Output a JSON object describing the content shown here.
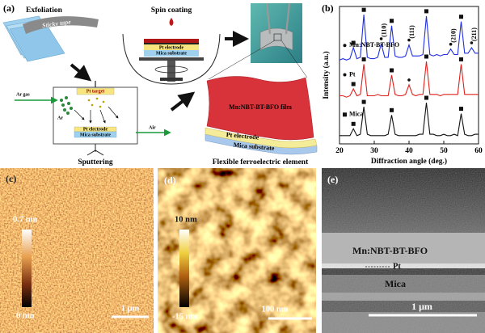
{
  "panel_labels": [
    "(a)",
    "(b)",
    "(c)",
    "(d)",
    "(e)"
  ],
  "schematic": {
    "exfoliation": "Exfoliation",
    "sticky_tape": "Sticky tape",
    "spin_coating": "Spin coating",
    "spin_layers": [
      "Pt electrode",
      "Mica substrate"
    ],
    "sputtering": "Sputtering",
    "pt_target": "Pt target",
    "ar_gas": "Ar gas",
    "ar": "Ar",
    "air": "Air",
    "chamber_layers": [
      "Pt electrode",
      "Mica substrate"
    ],
    "film": "Mn:NBT-BT-BFO film",
    "element_layers": [
      "Pt electrode",
      "Mica substrate"
    ],
    "element": "Flexible ferroelectric element"
  },
  "chart_data": {
    "type": "line",
    "x_label": "Diffraction angle (deg.)",
    "y_label": "Intensity (a.u.)",
    "x": [
      20,
      21,
      22,
      23,
      24,
      25,
      26,
      27,
      28,
      29,
      30,
      31,
      32,
      33,
      34,
      35,
      36,
      37,
      38,
      39,
      40,
      41,
      42,
      43,
      44,
      45,
      46,
      47,
      48,
      49,
      50,
      51,
      52,
      53,
      54,
      55,
      56,
      57,
      58,
      59,
      60
    ],
    "series": [
      {
        "name": "Mn:NBT-BT-BFO",
        "color": "#1f2fe0",
        "marker": "dot",
        "values": [
          61,
          62,
          61,
          62,
          70,
          62,
          63,
          94,
          63,
          62,
          62,
          63,
          73,
          63,
          63,
          86,
          64,
          63,
          63,
          64,
          72,
          64,
          64,
          64,
          65,
          93,
          65,
          64,
          65,
          64,
          65,
          65,
          69,
          65,
          65,
          89,
          66,
          66,
          70,
          66,
          66
        ]
      },
      {
        "name": "Pt",
        "color": "#e0201c",
        "marker": "dot",
        "values": [
          35,
          35,
          34,
          35,
          40,
          35,
          36,
          58,
          35,
          35,
          35,
          36,
          35,
          35,
          35,
          50,
          36,
          35,
          35,
          36,
          43,
          36,
          35,
          36,
          36,
          60,
          36,
          36,
          36,
          35,
          36,
          36,
          36,
          36,
          36,
          58,
          36,
          36,
          36,
          36,
          36
        ]
      },
      {
        "name": "Mica",
        "color": "#111111",
        "marker": "square",
        "values": [
          6,
          6,
          6,
          6,
          11,
          6,
          7,
          27,
          7,
          6,
          6,
          6,
          6,
          6,
          7,
          21,
          7,
          6,
          6,
          6,
          6,
          6,
          6,
          7,
          7,
          30,
          7,
          7,
          6,
          6,
          7,
          6,
          6,
          7,
          6,
          22,
          7,
          6,
          6,
          7,
          7
        ]
      }
    ],
    "peaks": [
      {
        "x": 24,
        "series": 0,
        "marker": "square"
      },
      {
        "x": 27,
        "series": 0,
        "marker": "square"
      },
      {
        "x": 32,
        "series": 0,
        "marker": "dot",
        "label": "(110)"
      },
      {
        "x": 35,
        "series": 0,
        "marker": "square"
      },
      {
        "x": 40,
        "series": 0,
        "marker": "dot",
        "label": "(111)"
      },
      {
        "x": 45,
        "series": 0,
        "marker": "square"
      },
      {
        "x": 52,
        "series": 0,
        "marker": "dot",
        "label": "(210)"
      },
      {
        "x": 55,
        "series": 0,
        "marker": "square"
      },
      {
        "x": 58,
        "series": 0,
        "marker": "dot",
        "label": "(211)"
      },
      {
        "x": 24,
        "series": 1,
        "marker": "square"
      },
      {
        "x": 27,
        "series": 1,
        "marker": "square"
      },
      {
        "x": 35,
        "series": 1,
        "marker": "square"
      },
      {
        "x": 40,
        "series": 1,
        "marker": "dot"
      },
      {
        "x": 45,
        "series": 1,
        "marker": "square"
      },
      {
        "x": 55,
        "series": 1,
        "marker": "square"
      },
      {
        "x": 24,
        "series": 2,
        "marker": "square"
      },
      {
        "x": 27,
        "series": 2,
        "marker": "square"
      },
      {
        "x": 35,
        "series": 2,
        "marker": "square"
      },
      {
        "x": 45,
        "series": 2,
        "marker": "square"
      },
      {
        "x": 55,
        "series": 2,
        "marker": "square"
      }
    ],
    "xlim": [
      20,
      60
    ],
    "xticks": [
      20,
      30,
      40,
      50,
      60
    ],
    "ylim": [
      0,
      100
    ]
  },
  "afm_c": {
    "max": "0.7 nm",
    "min": "0 nm",
    "scale": "1 μm"
  },
  "afm_d": {
    "max": "10 nm",
    "min": "-15 nm",
    "scale": "100 nm"
  },
  "sem": {
    "film": "Mn:NBT-BT-BFO",
    "pt": "Pt",
    "mica": "Mica",
    "scale": "1 μm"
  }
}
